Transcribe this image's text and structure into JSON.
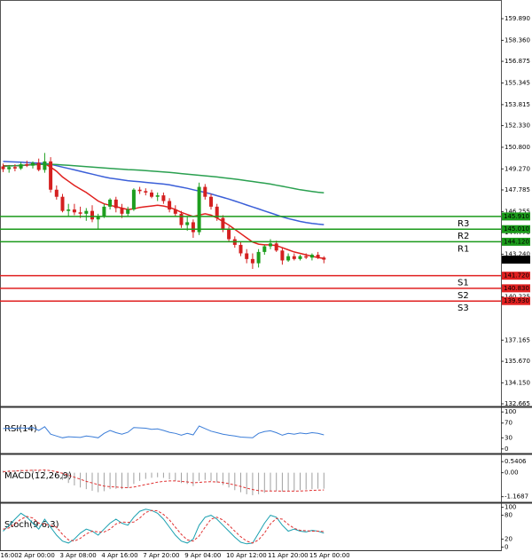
{
  "chart_data": [
    {
      "type": "candlestick",
      "categories": [
        "16:00",
        null,
        null,
        "2 Apr 00:00",
        null,
        null,
        null,
        null,
        null,
        null,
        "3 Apr 08:00",
        null,
        null,
        null,
        null,
        null,
        null,
        "4 Apr 16:00",
        null,
        null,
        null,
        null,
        null,
        null,
        "7 Apr 20:00",
        null,
        null,
        null,
        null,
        null,
        null,
        "9 Apr 04:00",
        null,
        null,
        null,
        null,
        null,
        null,
        "10 Apr 12:00",
        null,
        null,
        null,
        null,
        null,
        null,
        "11 Apr 20:00",
        null,
        null,
        null,
        null,
        null,
        null,
        "15 Apr 00:00",
        null,
        null
      ],
      "open": [
        149.45,
        149.25,
        149.4,
        149.3,
        149.6,
        149.5,
        149.7,
        149.2,
        149.8,
        147.8,
        147.3,
        146.3,
        146.4,
        146.2,
        146.1,
        146.3,
        145.7,
        145.9,
        146.6,
        147.1,
        146.5,
        146.1,
        146.4,
        147.8,
        147.7,
        147.6,
        147.3,
        147.4,
        147.0,
        146.4,
        146.1,
        145.3,
        145.5,
        144.8,
        148.0,
        147.3,
        146.6,
        145.8,
        145.0,
        144.3,
        143.9,
        143.3,
        142.9,
        142.6,
        143.4,
        143.8,
        144.0,
        143.5,
        142.8,
        143.1,
        142.9,
        143.1,
        143.0,
        143.2,
        143.0
      ],
      "high": [
        149.65,
        149.55,
        149.6,
        149.75,
        149.85,
        149.8,
        150.0,
        150.4,
        150.1,
        148.1,
        147.5,
        146.8,
        146.8,
        146.6,
        146.5,
        146.7,
        146.1,
        146.8,
        147.2,
        147.3,
        146.8,
        146.6,
        147.9,
        148.0,
        147.9,
        147.8,
        147.6,
        147.6,
        147.2,
        146.7,
        146.3,
        145.9,
        145.7,
        148.3,
        148.2,
        147.5,
        146.8,
        146.0,
        145.2,
        144.5,
        144.1,
        143.6,
        143.3,
        143.6,
        143.9,
        144.3,
        144.2,
        143.7,
        143.3,
        143.3,
        143.2,
        143.3,
        143.3,
        143.4,
        143.1
      ],
      "low": [
        149.05,
        149.0,
        149.1,
        149.2,
        149.4,
        149.3,
        149.1,
        149.0,
        147.6,
        147.1,
        146.2,
        145.9,
        146.0,
        145.8,
        145.6,
        145.5,
        145.0,
        145.8,
        146.4,
        146.2,
        145.8,
        145.9,
        146.3,
        147.5,
        147.4,
        147.2,
        147.0,
        146.8,
        146.2,
        145.9,
        145.1,
        144.9,
        144.4,
        144.6,
        147.1,
        146.4,
        145.6,
        144.8,
        144.1,
        143.7,
        143.1,
        142.6,
        142.2,
        142.3,
        143.2,
        143.6,
        143.4,
        142.5,
        142.7,
        142.8,
        142.8,
        142.9,
        142.8,
        142.9,
        142.6
      ],
      "close": [
        149.25,
        149.4,
        149.3,
        149.6,
        149.5,
        149.7,
        149.2,
        149.8,
        147.8,
        147.3,
        146.3,
        146.4,
        146.2,
        146.1,
        146.3,
        145.7,
        145.9,
        146.6,
        147.1,
        146.5,
        146.1,
        146.4,
        147.8,
        147.7,
        147.6,
        147.3,
        147.4,
        147.0,
        146.4,
        146.1,
        145.3,
        145.5,
        144.8,
        148.0,
        147.3,
        146.6,
        145.8,
        145.0,
        144.3,
        143.9,
        143.3,
        142.9,
        142.6,
        143.4,
        143.8,
        144.0,
        143.5,
        142.8,
        143.1,
        142.9,
        143.1,
        143.0,
        143.2,
        143.0,
        142.857
      ],
      "up_color": "#1e9e1e",
      "down_color": "#d42020",
      "overlays": [
        {
          "color": "#e0201e",
          "values": [
            149.5,
            149.5,
            149.5,
            149.5,
            149.55,
            149.6,
            149.6,
            149.65,
            149.4,
            149.1,
            148.7,
            148.4,
            148.1,
            147.85,
            147.6,
            147.3,
            147.0,
            146.8,
            146.7,
            146.6,
            146.5,
            146.4,
            146.45,
            146.55,
            146.6,
            146.65,
            146.7,
            146.65,
            146.55,
            146.4,
            146.2,
            146.05,
            145.9,
            146.0,
            146.1,
            146.0,
            145.8,
            145.55,
            145.3,
            145.0,
            144.7,
            144.4,
            144.1,
            143.95,
            143.9,
            143.9,
            143.85,
            143.7,
            143.55,
            143.4,
            143.3,
            143.2,
            143.1,
            143.0,
            142.95
          ]
        },
        {
          "color": "#3b5fd8",
          "values": [
            149.8,
            149.78,
            149.76,
            149.74,
            149.72,
            149.7,
            149.68,
            149.66,
            149.6,
            149.5,
            149.4,
            149.3,
            149.2,
            149.1,
            149.0,
            148.9,
            148.8,
            148.7,
            148.62,
            148.56,
            148.5,
            148.44,
            148.4,
            148.36,
            148.32,
            148.28,
            148.24,
            148.2,
            148.14,
            148.06,
            147.98,
            147.9,
            147.8,
            147.7,
            147.6,
            147.5,
            147.38,
            147.26,
            147.14,
            147.0,
            146.86,
            146.72,
            146.58,
            146.44,
            146.3,
            146.16,
            146.02,
            145.88,
            145.76,
            145.66,
            145.56,
            145.48,
            145.42,
            145.37,
            145.33
          ]
        },
        {
          "color": "#2aa050",
          "values": [
            149.45,
            149.48,
            149.5,
            149.52,
            149.54,
            149.56,
            149.58,
            149.6,
            149.6,
            149.58,
            149.55,
            149.52,
            149.49,
            149.46,
            149.43,
            149.4,
            149.37,
            149.34,
            149.31,
            149.28,
            149.25,
            149.22,
            149.2,
            149.18,
            149.15,
            149.12,
            149.09,
            149.06,
            149.02,
            148.98,
            148.94,
            148.9,
            148.86,
            148.82,
            148.78,
            148.74,
            148.7,
            148.65,
            148.6,
            148.55,
            148.5,
            148.44,
            148.38,
            148.32,
            148.26,
            148.2,
            148.12,
            148.04,
            147.96,
            147.88,
            147.8,
            147.74,
            147.68,
            147.62,
            147.58
          ]
        }
      ],
      "levels": [
        {
          "name": "R3",
          "value": 145.91,
          "label": "145.910",
          "color": "#1a9a1a"
        },
        {
          "name": "R2",
          "value": 145.01,
          "label": "145.010",
          "color": "#1a9a1a"
        },
        {
          "name": "R1",
          "value": 144.12,
          "label": "144.120",
          "color": "#1a9a1a"
        },
        {
          "name": "S1",
          "value": 141.72,
          "label": "141.720",
          "color": "#e02020"
        },
        {
          "name": "S2",
          "value": 140.83,
          "label": "140.830",
          "color": "#e02020"
        },
        {
          "name": "S3",
          "value": 139.93,
          "label": "139.930",
          "color": "#e02020"
        }
      ],
      "last_price": 142.857,
      "ylim": [
        132.54,
        161.21
      ],
      "yticks": [
        {
          "value": 159.89,
          "label": "159.890"
        },
        {
          "value": 158.36,
          "label": "158.360"
        },
        156.875,
        155.345,
        153.815,
        {
          "value": 152.33,
          "label": "152.330"
        },
        {
          "value": 150.8,
          "label": "150.800"
        },
        {
          "value": 149.27,
          "label": "149.270"
        },
        147.785,
        146.255,
        {
          "value": 144.77,
          "label": "144.770"
        },
        {
          "value": 143.24,
          "label": "143.240"
        },
        140.225,
        137.165,
        {
          "value": 135.67,
          "label": "135.670"
        },
        {
          "value": 134.15,
          "label": "134.150"
        },
        132.665
      ]
    },
    {
      "type": "line",
      "title": "RSI(14)",
      "ylim": [
        -10,
        110
      ],
      "yticks": [
        100,
        70,
        30,
        0
      ],
      "series": [
        {
          "color": "#3b7dd8",
          "values": [
            55,
            56,
            55,
            57,
            56,
            58,
            50,
            60,
            40,
            35,
            30,
            33,
            32,
            31,
            35,
            33,
            30,
            42,
            50,
            44,
            40,
            45,
            58,
            57,
            56,
            53,
            54,
            50,
            45,
            42,
            37,
            42,
            38,
            62,
            55,
            48,
            44,
            40,
            37,
            35,
            32,
            31,
            30,
            42,
            47,
            49,
            44,
            37,
            42,
            40,
            43,
            41,
            44,
            42,
            38
          ]
        }
      ]
    },
    {
      "type": "line",
      "title": "MACD(12,26,9)",
      "ylim": [
        -1.4,
        0.85
      ],
      "yticks": [
        0.5406,
        {
          "value": 0,
          "label": "0.00"
        },
        -1.1687
      ],
      "series": [
        {
          "kind": "histogram",
          "color": "#a0a0a0",
          "values": [
            0.1,
            0.12,
            0.12,
            0.14,
            0.14,
            0.15,
            0.12,
            0.15,
            0.0,
            -0.15,
            -0.35,
            -0.5,
            -0.62,
            -0.72,
            -0.8,
            -0.88,
            -0.95,
            -0.9,
            -0.8,
            -0.78,
            -0.8,
            -0.75,
            -0.55,
            -0.4,
            -0.3,
            -0.25,
            -0.22,
            -0.25,
            -0.32,
            -0.4,
            -0.5,
            -0.55,
            -0.65,
            -0.4,
            -0.35,
            -0.4,
            -0.48,
            -0.6,
            -0.72,
            -0.85,
            -0.95,
            -1.05,
            -1.1,
            -1.05,
            -0.98,
            -0.9,
            -0.88,
            -0.92,
            -0.9,
            -0.88,
            -0.85,
            -0.82,
            -0.8,
            -0.78,
            -0.78
          ]
        },
        {
          "kind": "line",
          "dashed": true,
          "color": "#e03030",
          "values": [
            0.05,
            0.07,
            0.08,
            0.1,
            0.11,
            0.12,
            0.12,
            0.13,
            0.1,
            0.05,
            -0.03,
            -0.12,
            -0.22,
            -0.32,
            -0.42,
            -0.5,
            -0.58,
            -0.65,
            -0.68,
            -0.7,
            -0.72,
            -0.73,
            -0.7,
            -0.64,
            -0.58,
            -0.52,
            -0.46,
            -0.42,
            -0.4,
            -0.4,
            -0.42,
            -0.45,
            -0.49,
            -0.47,
            -0.45,
            -0.44,
            -0.45,
            -0.48,
            -0.53,
            -0.6,
            -0.67,
            -0.75,
            -0.82,
            -0.87,
            -0.89,
            -0.89,
            -0.89,
            -0.9,
            -0.9,
            -0.9,
            -0.89,
            -0.88,
            -0.86,
            -0.85,
            -0.84
          ]
        }
      ]
    },
    {
      "type": "line",
      "title": "Stoch(9,6,3)",
      "ylim": [
        -8,
        108
      ],
      "yticks": [
        100,
        80,
        20,
        0
      ],
      "series": [
        {
          "kind": "line",
          "color": "#1aa0b0",
          "values": [
            40,
            55,
            70,
            85,
            75,
            60,
            45,
            70,
            50,
            30,
            15,
            10,
            20,
            35,
            45,
            40,
            30,
            45,
            60,
            70,
            60,
            55,
            75,
            90,
            95,
            92,
            85,
            70,
            50,
            30,
            15,
            10,
            20,
            55,
            75,
            80,
            70,
            55,
            40,
            25,
            12,
            8,
            10,
            35,
            60,
            80,
            75,
            55,
            40,
            45,
            40,
            38,
            42,
            40,
            35
          ]
        },
        {
          "kind": "line",
          "dashed": true,
          "color": "#e03030",
          "values": [
            45,
            48,
            58,
            70,
            77,
            73,
            60,
            58,
            55,
            50,
            32,
            18,
            15,
            22,
            33,
            40,
            38,
            38,
            45,
            58,
            63,
            62,
            63,
            73,
            87,
            92,
            91,
            82,
            68,
            50,
            32,
            18,
            15,
            28,
            50,
            70,
            75,
            68,
            55,
            40,
            26,
            15,
            10,
            18,
            35,
            58,
            72,
            70,
            57,
            47,
            42,
            41,
            40,
            40,
            39
          ]
        }
      ]
    }
  ]
}
